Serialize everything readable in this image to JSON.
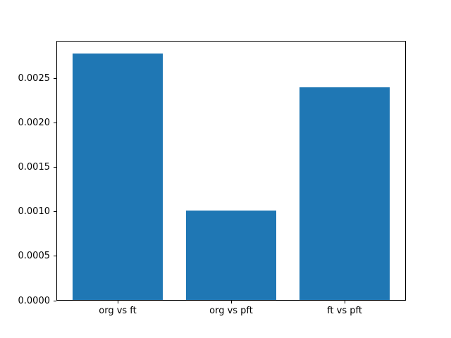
{
  "figure": {
    "background": "#ffffff",
    "axes_edge_color": "#000000",
    "tick_color": "#000000"
  },
  "chart_data": {
    "type": "bar",
    "title": "",
    "xlabel": "",
    "ylabel": "",
    "categories": [
      "org vs ft",
      "org vs pft",
      "ft vs pft"
    ],
    "values": [
      0.00278,
      0.00101,
      0.0024
    ],
    "bar_color": "#1f77b4",
    "bar_width": 0.8,
    "xlim": [
      -0.54,
      2.54
    ],
    "ylim": [
      0,
      0.00292
    ],
    "yticks": [
      0.0,
      0.0005,
      0.001,
      0.0015,
      0.002,
      0.0025
    ],
    "ytick_decimals": 4,
    "grid": false,
    "legend": null
  }
}
